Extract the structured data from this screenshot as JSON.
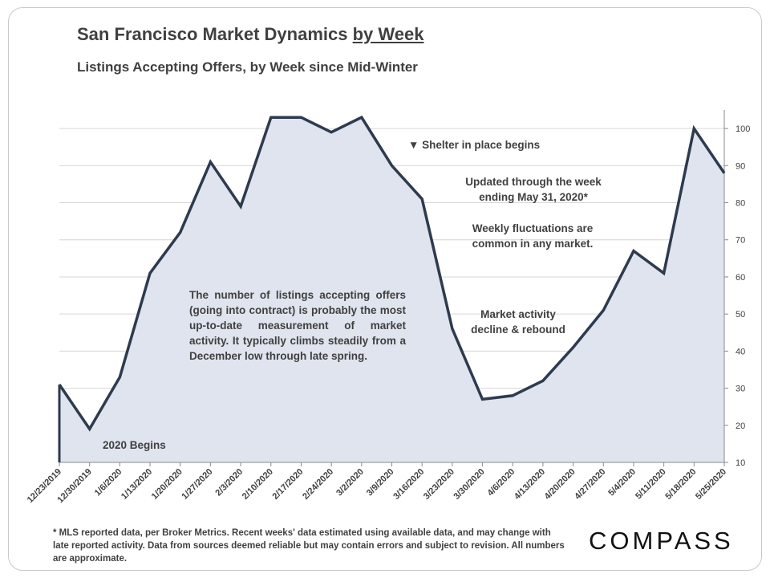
{
  "header": {
    "title_main": "San Francisco Market Dynamics ",
    "title_underlined": "by Week",
    "subtitle": "Listings Accepting Offers, by Week since Mid-Winter"
  },
  "annotations": {
    "description": "The number of listings accepting offers (going into contract) is probably the most up-to-date measurement of market activity. It typically climbs steadily from a December low through late spring.",
    "year_begins": "2020 Begins",
    "shelter": "▼ Shelter in place begins",
    "updated_line1": "Updated through the week",
    "updated_line2": "ending May 31, 2020*",
    "fluct_line1": "Weekly fluctuations are",
    "fluct_line2": "common in any market.",
    "decline_line1": "Market activity",
    "decline_line2": "decline & rebound"
  },
  "footnote": "* MLS reported data, per Broker Metrics. Recent weeks' data estimated using available data, and may change with late reported activity. Data from sources deemed reliable but may contain errors and subject to revision. All numbers are approximate.",
  "logo": "COMPASS",
  "chart_data": {
    "type": "area",
    "categories": [
      "12/23/2019",
      "12/30/2019",
      "1/6/2020",
      "1/13/2020",
      "1/20/2020",
      "1/27/2020",
      "2/3/2020",
      "2/10/2020",
      "2/17/2020",
      "2/24/2020",
      "3/2/2020",
      "3/9/2020",
      "3/16/2020",
      "3/23/2020",
      "3/30/2020",
      "4/6/2020",
      "4/13/2020",
      "4/20/2020",
      "4/27/2020",
      "5/4/2020",
      "5/11/2020",
      "5/18/2020",
      "5/25/2020"
    ],
    "values": [
      31,
      19,
      33,
      61,
      72,
      91,
      79,
      103,
      103,
      99,
      103,
      90,
      81,
      46,
      27,
      28,
      32,
      41,
      51,
      67,
      61,
      100,
      88
    ],
    "ylim": [
      10,
      105
    ],
    "yticks": [
      10,
      20,
      30,
      40,
      50,
      60,
      70,
      80,
      90,
      100
    ],
    "y_axis_side": "right",
    "grid": true,
    "line_color": "#2e3a4e",
    "fill_color": "#dfe4ee"
  }
}
